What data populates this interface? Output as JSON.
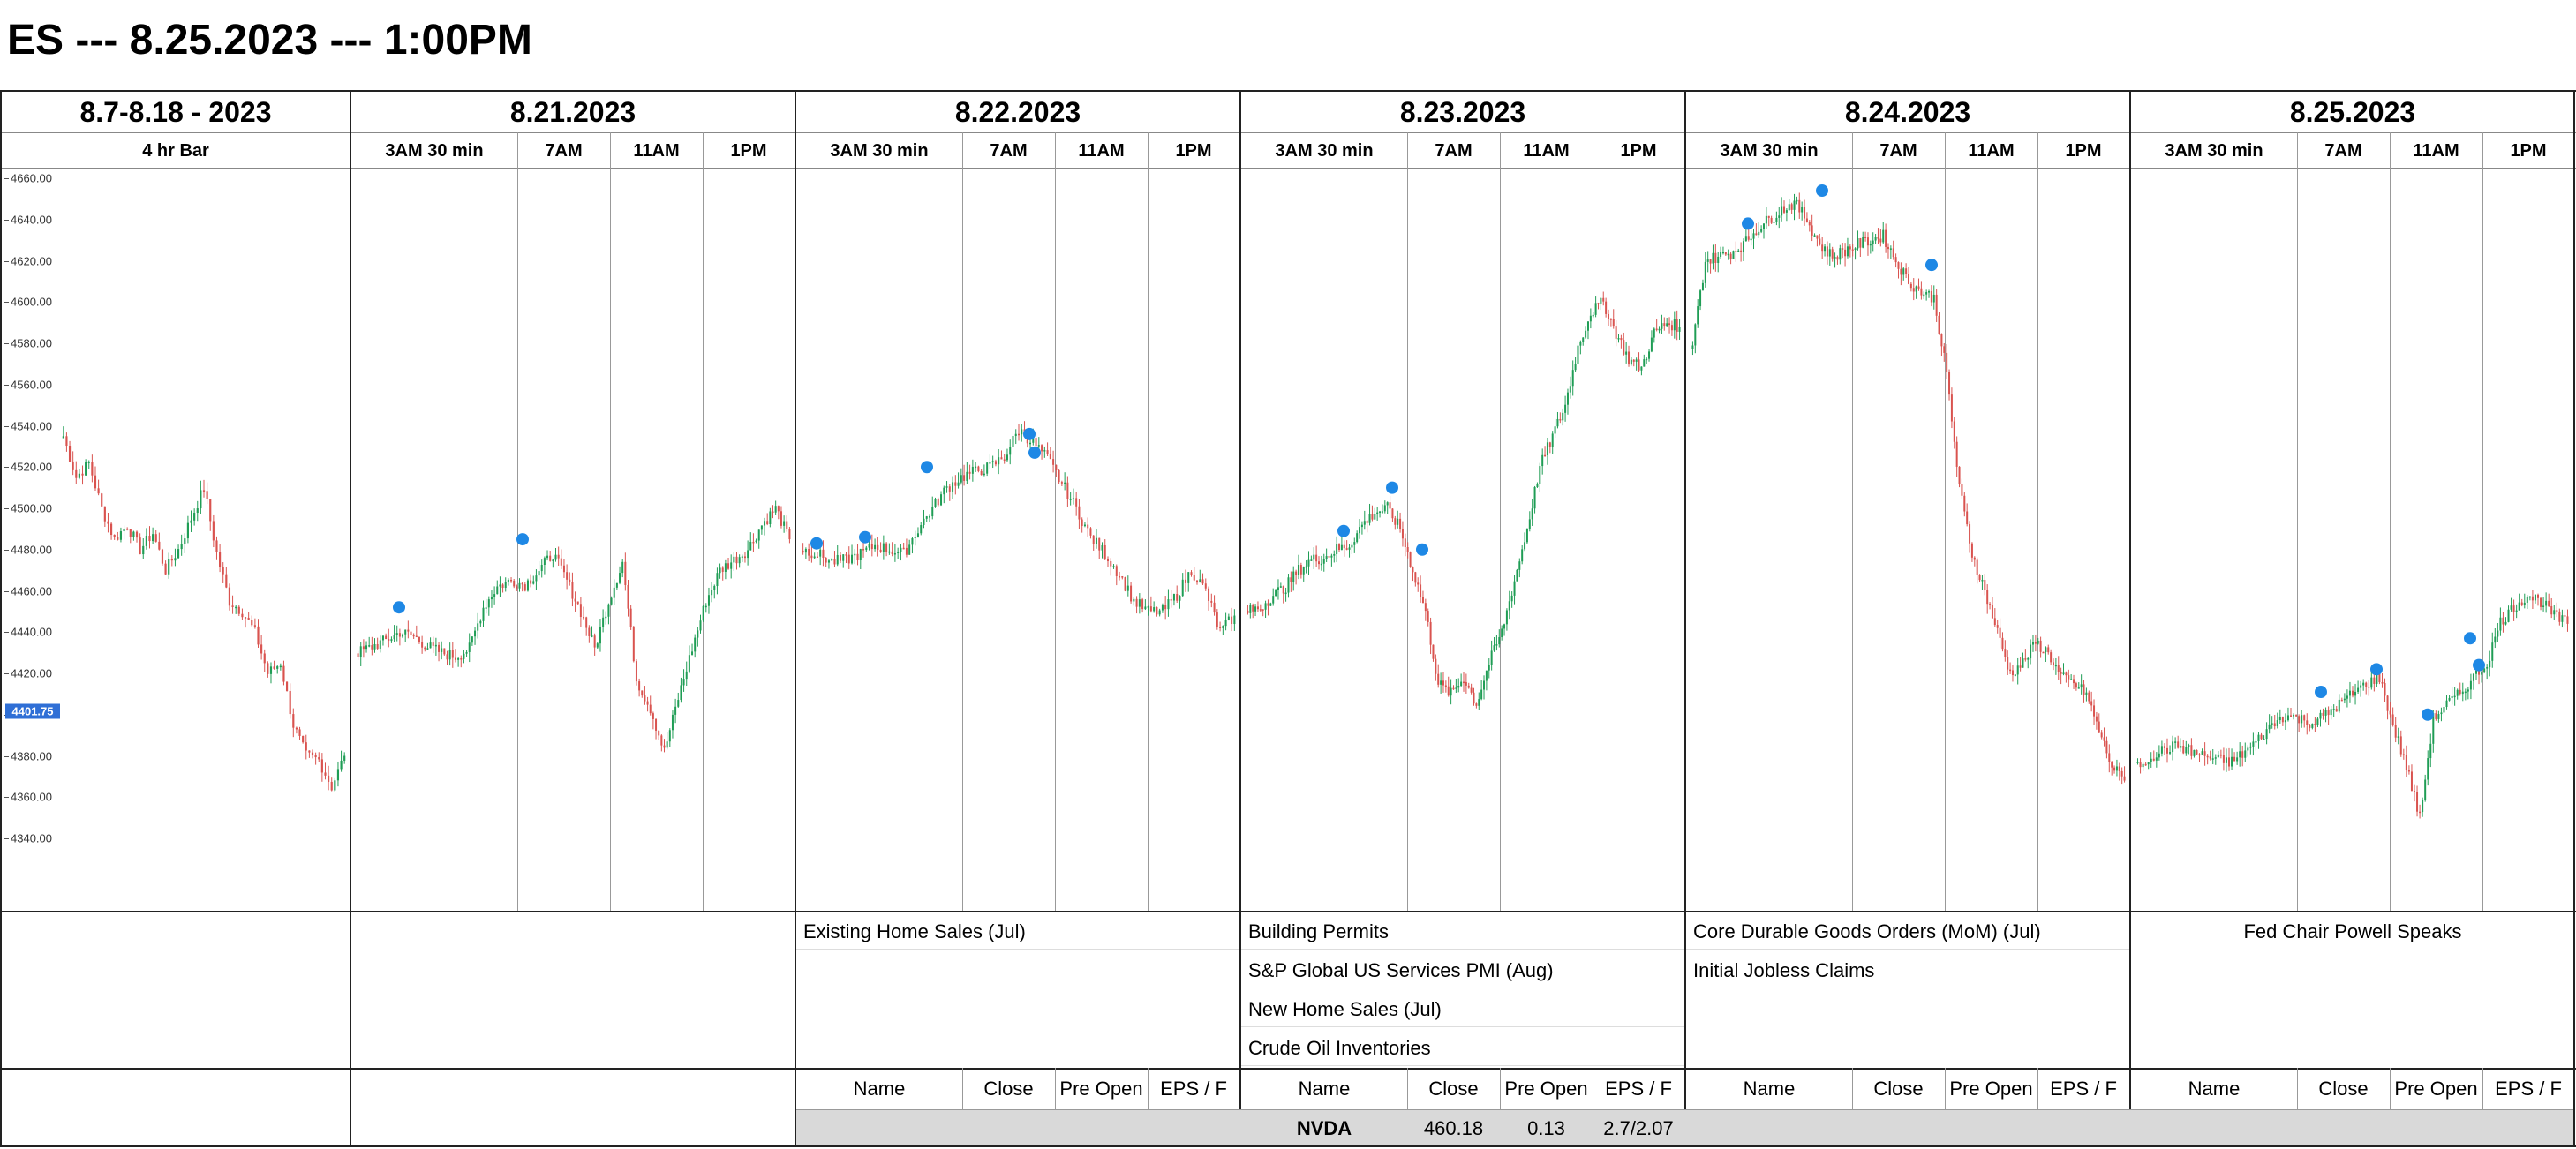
{
  "title": "ES --- 8.25.2023 --- 1:00PM",
  "days": [
    {
      "label": "8.7-8.18 - 2023",
      "sessions": [
        "4 hr Bar"
      ]
    },
    {
      "label": "8.21.2023",
      "sessions": [
        "3AM 30 min",
        "7AM",
        "11AM",
        "1PM"
      ]
    },
    {
      "label": "8.22.2023",
      "sessions": [
        "3AM 30 min",
        "7AM",
        "11AM",
        "1PM"
      ]
    },
    {
      "label": "8.23.2023",
      "sessions": [
        "3AM 30 min",
        "7AM",
        "11AM",
        "1PM"
      ]
    },
    {
      "label": "8.24.2023",
      "sessions": [
        "3AM 30 min",
        "7AM",
        "11AM",
        "1PM"
      ]
    },
    {
      "label": "8.25.2023",
      "sessions": [
        "3AM 30 min",
        "7AM",
        "11AM",
        "1PM"
      ]
    }
  ],
  "events": {
    "d822": [
      "Existing Home Sales (Jul)"
    ],
    "d823": [
      "Building Permits",
      "S&P Global US Services PMI (Aug)",
      "New Home Sales (Jul)",
      "Crude Oil Inventories"
    ],
    "d824": [
      "Core Durable Goods Orders (MoM) (Jul)",
      "Initial Jobless Claims"
    ],
    "d825": [
      "Fed Chair Powell Speaks"
    ]
  },
  "earnings_headers": [
    "Name",
    "Close",
    "Pre Open",
    "EPS / F"
  ],
  "earnings": {
    "d823": {
      "name": "NVDA",
      "close": "460.18",
      "pre_open": "0.13",
      "eps": "2.7/2.07"
    }
  },
  "colors": {
    "up": "#1f9d55",
    "down": "#d9534f",
    "marker": "#1e88e5",
    "price_tag": "#2f6fd6",
    "shade": "#d9d9d9"
  },
  "chart_data": {
    "type": "candlestick",
    "y_ticks": [
      "4660.00",
      "4640.00",
      "4620.00",
      "4600.00",
      "4580.00",
      "4560.00",
      "4540.00",
      "4520.00",
      "4500.00",
      "4480.00",
      "4460.00",
      "4440.00",
      "4420.00",
      "4400.00",
      "4380.00",
      "4360.00",
      "4340.00"
    ],
    "ylim": [
      4340,
      4660
    ],
    "current_price": "4401.75",
    "series": [
      {
        "panel": "8.7-8.18 - 2023",
        "close_path": [
          4535,
          4515,
          4522,
          4500,
          4485,
          4492,
          4480,
          4488,
          4470,
          4480,
          4495,
          4510,
          4478,
          4455,
          4450,
          4440,
          4420,
          4425,
          4395,
          4380,
          4378,
          4365,
          4380
        ]
      },
      {
        "panel": "8.21.2023",
        "close_path": [
          4430,
          4433,
          4436,
          4440,
          4438,
          4433,
          4430,
          4428,
          4432,
          4452,
          4462,
          4465,
          4463,
          4470,
          4478,
          4465,
          4450,
          4432,
          4455,
          4474,
          4417,
          4403,
          4382,
          4408,
          4432,
          4455,
          4470,
          4475,
          4480,
          4492,
          4500,
          4485
        ]
      },
      {
        "panel": "8.22.2023",
        "close_path": [
          4480,
          4478,
          4474,
          4475,
          4478,
          4482,
          4480,
          4478,
          4490,
          4500,
          4510,
          4515,
          4518,
          4520,
          4525,
          4538,
          4532,
          4524,
          4512,
          4500,
          4486,
          4478,
          4468,
          4455,
          4450,
          4450,
          4458,
          4470,
          4460,
          4440,
          4448
        ]
      },
      {
        "panel": "8.23.2023",
        "close_path": [
          4450,
          4452,
          4458,
          4462,
          4470,
          4475,
          4476,
          4480,
          4482,
          4492,
          4498,
          4500,
          4490,
          4470,
          4450,
          4415,
          4410,
          4418,
          4405,
          4425,
          4440,
          4465,
          4490,
          4520,
          4535,
          4550,
          4578,
          4595,
          4600,
          4585,
          4572,
          4568,
          4585,
          4590,
          4588
        ]
      },
      {
        "panel": "8.24.2023",
        "close_path": [
          4580,
          4620,
          4622,
          4624,
          4628,
          4635,
          4640,
          4645,
          4648,
          4640,
          4628,
          4622,
          4625,
          4628,
          4630,
          4632,
          4620,
          4610,
          4605,
          4602,
          4565,
          4510,
          4478,
          4460,
          4440,
          4420,
          4425,
          4435,
          4430,
          4418,
          4415,
          4410,
          4392,
          4375,
          4368
        ]
      },
      {
        "panel": "8.25.2023",
        "close_path": [
          4375,
          4380,
          4383,
          4385,
          4382,
          4380,
          4378,
          4377,
          4382,
          4388,
          4395,
          4400,
          4398,
          4396,
          4400,
          4405,
          4410,
          4415,
          4418,
          4395,
          4375,
          4350,
          4398,
          4405,
          4410,
          4418,
          4425,
          4445,
          4452,
          4458,
          4455,
          4448,
          4444
        ]
      }
    ]
  }
}
